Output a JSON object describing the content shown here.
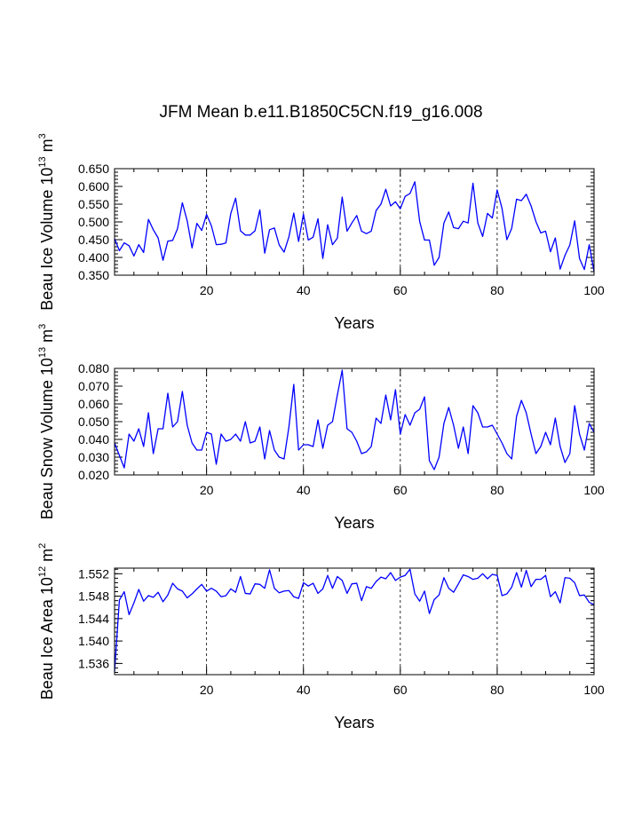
{
  "title": "JFM Mean b.e11.B1850C5CN.f19_g16.008",
  "colors": {
    "series": "#0000ff",
    "axes": "#000000",
    "background": "#ffffff"
  },
  "chart_data": [
    {
      "type": "line",
      "xlabel": "Years",
      "ylabel": {
        "prefix": "Beau Ice Volume 10",
        "exp1": "13",
        "mid": " m",
        "exp2": "3"
      },
      "xlim": [
        1,
        100
      ],
      "ylim": [
        0.35,
        0.65
      ],
      "xticks": [
        20,
        40,
        60,
        80,
        100
      ],
      "yticks": [
        0.35,
        0.4,
        0.45,
        0.5,
        0.55,
        0.6,
        0.65
      ],
      "ytick_labels": [
        "0.350",
        "0.400",
        "0.450",
        "0.500",
        "0.550",
        "0.600",
        "0.650"
      ],
      "grid_x": [
        20,
        40,
        60,
        80
      ],
      "series": [
        {
          "name": "Beau Ice Volume",
          "x_start": 1,
          "values": [
            0.453,
            0.419,
            0.441,
            0.433,
            0.404,
            0.436,
            0.414,
            0.507,
            0.478,
            0.455,
            0.392,
            0.446,
            0.448,
            0.481,
            0.554,
            0.503,
            0.427,
            0.496,
            0.476,
            0.521,
            0.489,
            0.436,
            0.437,
            0.441,
            0.524,
            0.567,
            0.475,
            0.463,
            0.463,
            0.475,
            0.534,
            0.412,
            0.478,
            0.483,
            0.435,
            0.415,
            0.458,
            0.525,
            0.445,
            0.522,
            0.449,
            0.457,
            0.509,
            0.397,
            0.492,
            0.436,
            0.454,
            0.57,
            0.474,
            0.497,
            0.518,
            0.474,
            0.467,
            0.474,
            0.532,
            0.55,
            0.592,
            0.545,
            0.557,
            0.537,
            0.572,
            0.58,
            0.613,
            0.501,
            0.449,
            0.449,
            0.378,
            0.4,
            0.497,
            0.528,
            0.484,
            0.481,
            0.502,
            0.497,
            0.609,
            0.497,
            0.459,
            0.524,
            0.511,
            0.59,
            0.538,
            0.45,
            0.482,
            0.564,
            0.56,
            0.578,
            0.545,
            0.501,
            0.469,
            0.474,
            0.416,
            0.455,
            0.367,
            0.406,
            0.435,
            0.503,
            0.397,
            0.366,
            0.436,
            0.36
          ]
        }
      ]
    },
    {
      "type": "line",
      "xlabel": "Years",
      "ylabel": {
        "prefix": "Beau Snow Volume 10",
        "exp1": "13",
        "mid": " m",
        "exp2": "3"
      },
      "xlim": [
        1,
        100
      ],
      "ylim": [
        0.02,
        0.08
      ],
      "xticks": [
        20,
        40,
        60,
        80,
        100
      ],
      "yticks": [
        0.02,
        0.03,
        0.04,
        0.05,
        0.06,
        0.07,
        0.08
      ],
      "ytick_labels": [
        "0.020",
        "0.030",
        "0.040",
        "0.050",
        "0.060",
        "0.070",
        "0.080"
      ],
      "grid_x": [
        20,
        40,
        60,
        80
      ],
      "series": [
        {
          "name": "Beau Snow Volume",
          "x_start": 1,
          "values": [
            0.038,
            0.031,
            0.024,
            0.043,
            0.039,
            0.046,
            0.036,
            0.055,
            0.032,
            0.046,
            0.046,
            0.066,
            0.047,
            0.05,
            0.067,
            0.048,
            0.038,
            0.034,
            0.034,
            0.044,
            0.043,
            0.026,
            0.043,
            0.039,
            0.04,
            0.043,
            0.039,
            0.05,
            0.038,
            0.039,
            0.047,
            0.029,
            0.045,
            0.034,
            0.03,
            0.029,
            0.047,
            0.071,
            0.034,
            0.037,
            0.037,
            0.036,
            0.051,
            0.035,
            0.048,
            0.05,
            0.065,
            0.079,
            0.046,
            0.044,
            0.039,
            0.032,
            0.033,
            0.036,
            0.052,
            0.049,
            0.065,
            0.051,
            0.068,
            0.043,
            0.054,
            0.048,
            0.055,
            0.057,
            0.064,
            0.028,
            0.023,
            0.03,
            0.049,
            0.058,
            0.048,
            0.035,
            0.047,
            0.032,
            0.059,
            0.055,
            0.047,
            0.047,
            0.048,
            0.043,
            0.038,
            0.032,
            0.029,
            0.053,
            0.062,
            0.055,
            0.043,
            0.032,
            0.036,
            0.044,
            0.037,
            0.052,
            0.036,
            0.027,
            0.032,
            0.059,
            0.043,
            0.034,
            0.049,
            0.044
          ]
        }
      ]
    },
    {
      "type": "line",
      "xlabel": "Years",
      "ylabel": {
        "prefix": "Beau Ice Area 10",
        "exp1": "12",
        "mid": " m",
        "exp2": "2"
      },
      "xlim": [
        1,
        100
      ],
      "ylim": [
        1.534,
        1.553
      ],
      "xticks": [
        20,
        40,
        60,
        80,
        100
      ],
      "yticks": [
        1.536,
        1.54,
        1.544,
        1.548,
        1.552
      ],
      "ytick_labels": [
        "1.536",
        "1.540",
        "1.544",
        "1.548",
        "1.552"
      ],
      "grid_x": [
        20,
        40,
        60,
        80
      ],
      "series": [
        {
          "name": "Beau Ice Area",
          "x_start": 1,
          "values": [
            1.5345,
            1.5473,
            1.5488,
            1.5447,
            1.5468,
            1.5492,
            1.5471,
            1.5481,
            1.5478,
            1.5487,
            1.547,
            1.5482,
            1.5503,
            1.5493,
            1.5489,
            1.5477,
            1.5484,
            1.5493,
            1.5501,
            1.5489,
            1.5494,
            1.5489,
            1.5479,
            1.5481,
            1.5493,
            1.5487,
            1.5515,
            1.5485,
            1.5484,
            1.5502,
            1.5501,
            1.5494,
            1.5527,
            1.5494,
            1.5486,
            1.5489,
            1.549,
            1.5479,
            1.5476,
            1.5504,
            1.5498,
            1.5503,
            1.5485,
            1.5493,
            1.5517,
            1.5494,
            1.5515,
            1.5508,
            1.5485,
            1.5502,
            1.5503,
            1.5472,
            1.5497,
            1.5494,
            1.5506,
            1.5514,
            1.5511,
            1.5522,
            1.5508,
            1.5514,
            1.5517,
            1.5528,
            1.5484,
            1.5471,
            1.5489,
            1.5449,
            1.5474,
            1.5482,
            1.5513,
            1.5494,
            1.5487,
            1.5502,
            1.5518,
            1.5515,
            1.551,
            1.5512,
            1.552,
            1.5511,
            1.5519,
            1.5517,
            1.5481,
            1.5484,
            1.5496,
            1.5522,
            1.5496,
            1.5526,
            1.5497,
            1.551,
            1.551,
            1.5517,
            1.5479,
            1.5488,
            1.5468,
            1.5513,
            1.5512,
            1.5504,
            1.5481,
            1.5482,
            1.5469,
            1.5465
          ]
        }
      ]
    }
  ]
}
